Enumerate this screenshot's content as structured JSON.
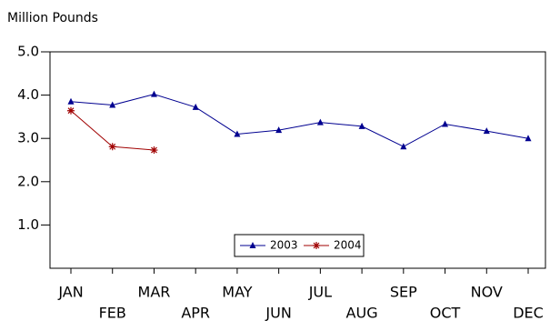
{
  "chart_data": {
    "type": "line",
    "y_label": "Million Pounds",
    "categories": [
      "JAN",
      "FEB",
      "MAR",
      "APR",
      "MAY",
      "JUN",
      "JUL",
      "AUG",
      "SEP",
      "OCT",
      "NOV",
      "DEC"
    ],
    "series": [
      {
        "name": "2003",
        "color": "#000090",
        "marker": "triangle",
        "values": [
          3.85,
          3.77,
          4.02,
          3.72,
          3.1,
          3.19,
          3.37,
          3.28,
          2.81,
          3.33,
          3.17,
          3.0
        ]
      },
      {
        "name": "2004",
        "color": "#a00000",
        "marker": "asterisk",
        "values": [
          3.64,
          2.81,
          2.73,
          null,
          null,
          null,
          null,
          null,
          null,
          null,
          null,
          null
        ]
      }
    ],
    "ylim": [
      0,
      5
    ],
    "yticks": [
      {
        "value": 1,
        "label": "1.0"
      },
      {
        "value": 2,
        "label": "2.0"
      },
      {
        "value": 3,
        "label": "3.0"
      },
      {
        "value": 4,
        "label": "4.0"
      },
      {
        "value": 5,
        "label": "5.0"
      }
    ],
    "grid": false,
    "legend": "bottom"
  }
}
